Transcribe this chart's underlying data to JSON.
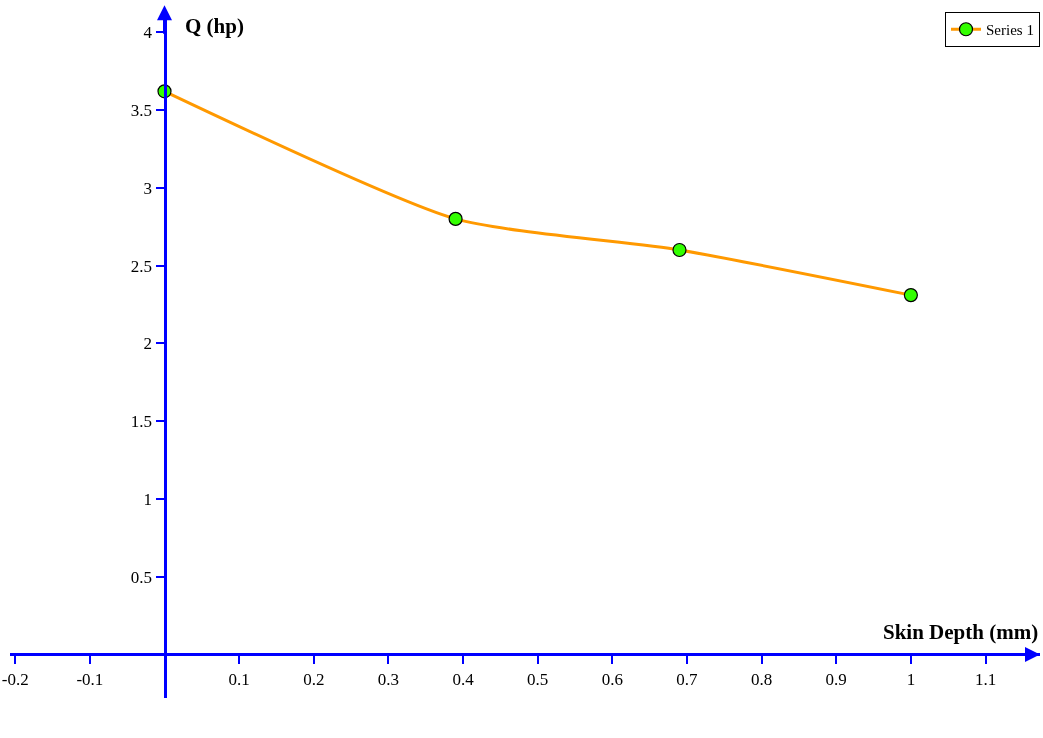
{
  "chart_data": {
    "type": "line",
    "xlabel": "Skin Depth (mm)",
    "ylabel": "Q (hp)",
    "x": [
      0,
      0.39,
      0.69,
      1
    ],
    "series": [
      {
        "name": "Series 1",
        "color": "#ff9900",
        "colors": [
          "#33ff00",
          "#33ff00",
          "#33ff00",
          "#33ff00"
        ],
        "values": [
          3.62,
          2.8,
          2.6,
          2.31
        ]
      }
    ],
    "xlim": [
      -0.207,
      1.173
    ],
    "ylim": [
      -0.28,
      4.13
    ],
    "xticks": [
      -0.2,
      -0.1,
      0.1,
      0.2,
      0.3,
      0.4,
      0.5,
      0.6,
      0.7,
      0.8,
      0.9,
      1,
      1.1
    ],
    "yticks": [
      0.5,
      1,
      1.5,
      2,
      2.5,
      3,
      3.5,
      4
    ],
    "grid": false,
    "legend": "top right",
    "marker": "circle",
    "line_style": "solid"
  }
}
